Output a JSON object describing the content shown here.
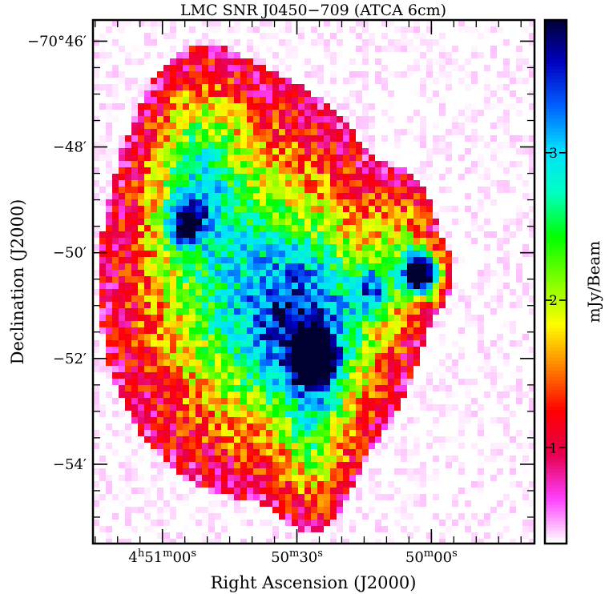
{
  "chart_data": {
    "type": "heatmap",
    "title": "LMC SNR J0450−709 (ATCA 6cm)",
    "xlabel": "Right Ascension (J2000)",
    "ylabel": "Declination (J2000)",
    "colorbar_label": "mJy/Beam",
    "x_ticks": [
      {
        "label_h": "4",
        "label_hsup": "h",
        "label_m": "51",
        "label_msup": "m",
        "label_s": "00",
        "label_ssup": "s",
        "seconds_offset": 60
      },
      {
        "label_m": "50",
        "label_msup": "m",
        "label_s": "30",
        "label_ssup": "s",
        "seconds_offset": 30
      },
      {
        "label_m": "50",
        "label_msup": "m",
        "label_s": "00",
        "label_ssup": "s",
        "seconds_offset": 0
      }
    ],
    "y_ticks": [
      "−70°46′",
      "−48′",
      "−50′",
      "−52′",
      "−54′"
    ],
    "y_tick_values_arcmin": [
      -46,
      -48,
      -50,
      -52,
      -54
    ],
    "colorbar_ticks": [
      "1",
      "2",
      "3"
    ],
    "colorbar_tick_values": [
      1,
      2,
      3
    ],
    "colorbar_range": [
      0.35,
      3.9
    ],
    "xlim_seconds_offset": [
      75.5,
      -23
    ],
    "ylim_arcmin": [
      -45.6,
      -55.5
    ],
    "colormap": [
      "#ffffff",
      "#ff40ff",
      "#e60050",
      "#ff0000",
      "#ff8000",
      "#ffff00",
      "#80ff00",
      "#00ff00",
      "#00ffc0",
      "#00e0ff",
      "#0060ff",
      "#0000c0",
      "#000030"
    ],
    "emission_blobs": [
      {
        "ra_s": 41,
        "dec": -50.6,
        "sx": 20,
        "sy": 2.4,
        "peak": 1.0
      },
      {
        "ra_s": 27,
        "dec": -51.4,
        "sx": 12,
        "sy": 1.2,
        "peak": 0.9
      },
      {
        "ra_s": 52,
        "dec": -48.4,
        "sx": 7,
        "sy": 1.2,
        "peak": 0.7
      },
      {
        "ra_s": 26,
        "dec": -53.6,
        "sx": 5,
        "sy": 1.0,
        "peak": 0.55
      },
      {
        "ra_s": 6,
        "dec": -49.9,
        "sx": 5,
        "sy": 0.8,
        "peak": 0.5
      },
      {
        "ra_s": 26,
        "dec": -52.0,
        "sx": 3,
        "sy": 0.3,
        "peak": 1.7
      },
      {
        "ra_s": 2,
        "dec": -50.4,
        "sx": 3,
        "sy": 0.3,
        "peak": 1.7
      },
      {
        "ra_s": 55,
        "dec": -49.4,
        "sx": 3,
        "sy": 0.3,
        "peak": 0.9
      },
      {
        "ra_s": 13,
        "dec": -50.7,
        "sx": 3,
        "sy": 0.35,
        "peak": 0.7
      }
    ],
    "grid": false,
    "colorbar_position": "right"
  }
}
